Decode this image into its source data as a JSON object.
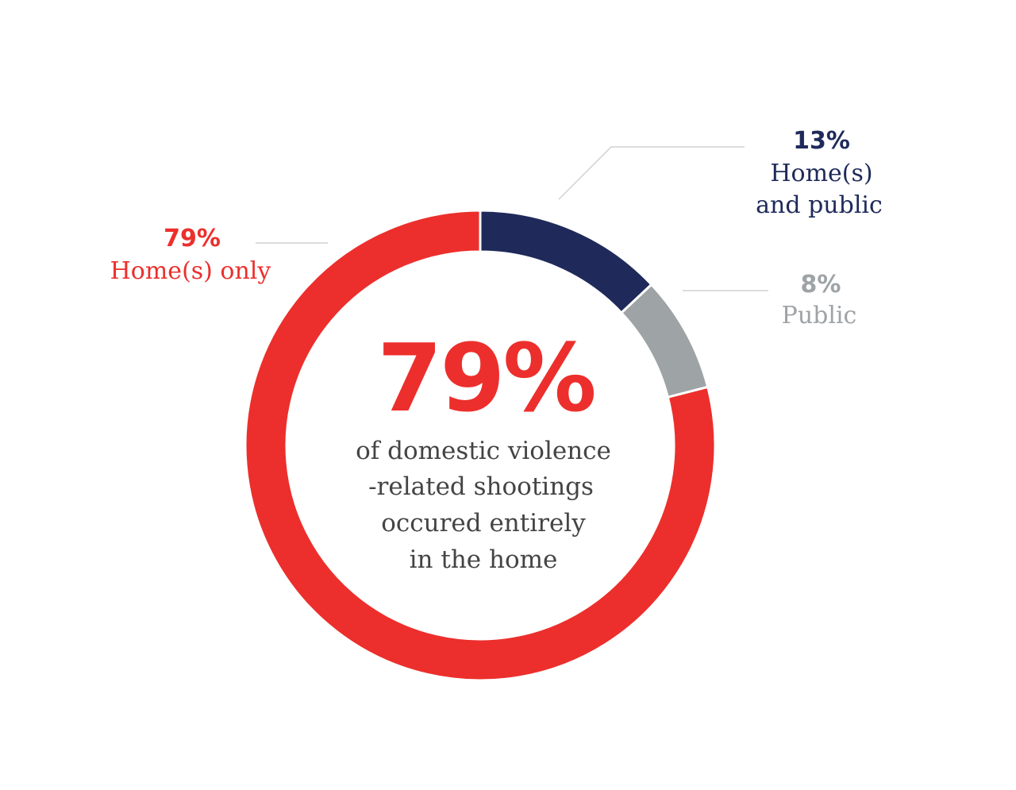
{
  "chart_data": {
    "type": "pie",
    "donut": true,
    "title": "",
    "slices": [
      {
        "label_pct": "13%",
        "label_lines": [
          "Home(s)",
          "and public"
        ],
        "value": 13,
        "color": "#1f2a5a"
      },
      {
        "label_pct": "8%",
        "label_lines": [
          "Public"
        ],
        "value": 8,
        "color": "#9ea3a6"
      },
      {
        "label_pct": "79%",
        "label_lines": [
          "Home(s) only"
        ],
        "value": 79,
        "color": "#ec2f2c"
      }
    ],
    "center": {
      "value": "79%",
      "value_color": "#ec2f2c",
      "text_lines": [
        "of domestic violence",
        "-related shootings",
        "occured entirely",
        "in the home"
      ],
      "text_color": "#444444"
    },
    "leader_line_color": "#c8c8c8"
  }
}
